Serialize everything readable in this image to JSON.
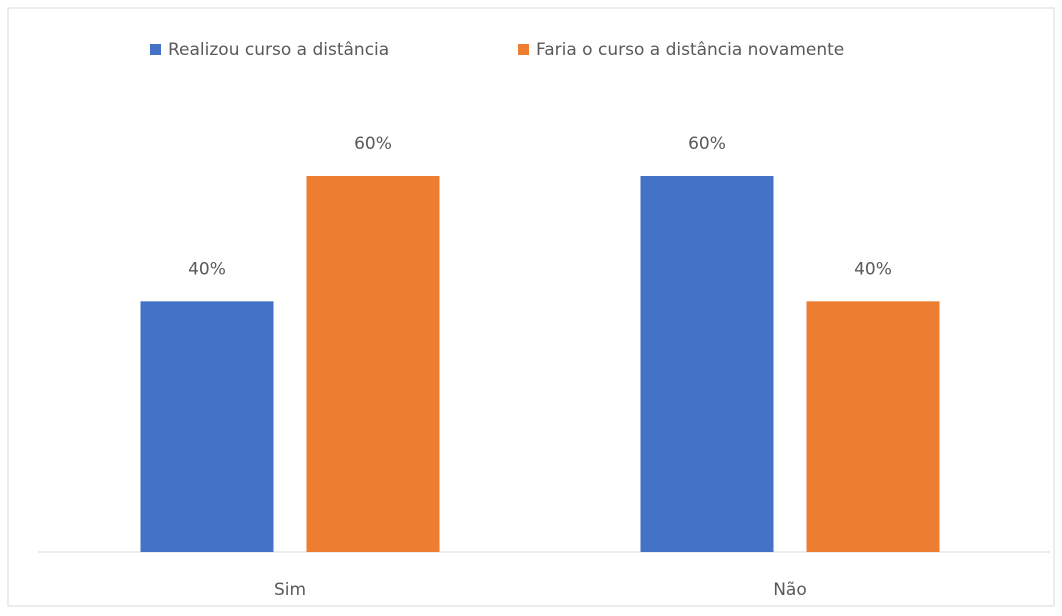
{
  "chart_data": {
    "type": "bar",
    "categories": [
      "Sim",
      "Não"
    ],
    "series": [
      {
        "name": "Realizou curso a distância",
        "color": "#4472c4",
        "values": [
          40,
          60
        ],
        "value_labels": [
          "40%",
          "60%"
        ]
      },
      {
        "name": "Faria o curso a distância novamente",
        "color": "#ed7d31",
        "values": [
          60,
          40
        ],
        "value_labels": [
          "60%",
          "40%"
        ]
      }
    ],
    "legend": "top"
  }
}
